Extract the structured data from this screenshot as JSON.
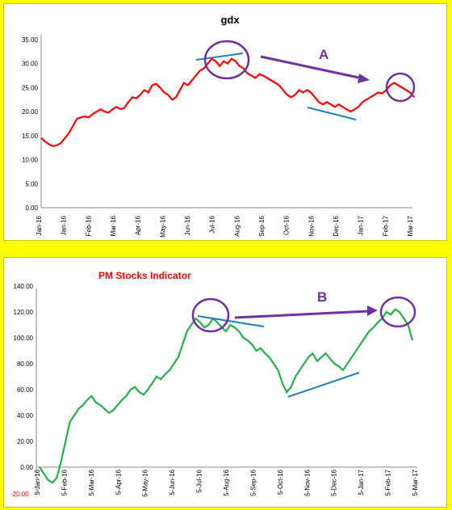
{
  "colors": {
    "background": "#ffff00",
    "gdx_line": "#ff0000",
    "pm_line": "#22b14c",
    "annotation_purple": "#7030a0",
    "trend_blue": "#1f7fc0"
  },
  "chart_data": [
    {
      "type": "line",
      "title": "gdx",
      "ylim": [
        0,
        35
      ],
      "yticks": [
        "35.00",
        "30.00",
        "25.00",
        "20.00",
        "15.00",
        "10.00",
        "5.00",
        "0.00"
      ],
      "xticks": [
        "Jan-16",
        "Jan-16",
        "Feb-16",
        "Mar-16",
        "Apr-16",
        "May-16",
        "Jun-16",
        "Jul-16",
        "Aug-16",
        "Sep-16",
        "Oct-16",
        "Nov-16",
        "Dec-16",
        "Jan-17",
        "Feb-17",
        "Mar-17"
      ],
      "legend": "none",
      "grid": false,
      "annotation_label": "A",
      "series": [
        {
          "values": [
            14.5,
            13.8,
            13.2,
            12.8,
            13.0,
            13.5,
            14.5,
            15.5,
            17.0,
            18.5,
            18.8,
            19.0,
            18.8,
            19.5,
            20.0,
            20.5,
            20.0,
            19.8,
            20.5,
            21.0,
            20.5,
            20.8,
            22.0,
            23.0,
            22.8,
            23.5,
            24.5,
            24.0,
            25.5,
            25.8,
            25.0,
            24.0,
            23.5,
            22.5,
            23.0,
            24.5,
            26.0,
            25.5,
            26.5,
            27.5,
            28.5,
            29.0,
            30.0,
            31.0,
            30.5,
            29.5,
            30.5,
            30.0,
            31.0,
            30.5,
            29.5,
            29.0,
            28.0,
            27.5,
            27.0,
            27.8,
            27.5,
            27.0,
            26.5,
            26.0,
            25.5,
            24.5,
            23.5,
            23.0,
            23.5,
            24.5,
            24.0,
            24.5,
            24.0,
            23.0,
            22.0,
            21.5,
            22.0,
            21.5,
            21.0,
            21.5,
            21.0,
            20.5,
            20.0,
            20.5,
            21.0,
            22.0,
            22.5,
            23.0,
            23.5,
            24.0,
            23.8,
            24.5,
            25.5,
            26.0,
            25.5,
            25.0,
            24.5,
            24.0,
            23.0
          ]
        }
      ]
    },
    {
      "type": "line",
      "title": "PM Stocks Indicator",
      "ylim": [
        -20,
        140
      ],
      "yticks": [
        "140.00",
        "120.00",
        "100.00",
        "80.00",
        "60.00",
        "40.00",
        "20.00",
        "0.00"
      ],
      "negative_tick": "-20.00",
      "xticks": [
        "5-Jan-16",
        "5-Feb-16",
        "5-Mar-16",
        "5-Apr-16",
        "5-May-16",
        "5-Jun-16",
        "5-Jul-16",
        "5-Aug-16",
        "5-Sep-16",
        "5-Oct-16",
        "5-Nov-16",
        "5-Dec-16",
        "5-Jan-17",
        "5-Feb-17",
        "5-Mar-17"
      ],
      "legend": "none",
      "grid": false,
      "annotation_label": "B",
      "series": [
        {
          "values": [
            0,
            -5,
            -10,
            -12,
            -8,
            5,
            20,
            35,
            40,
            45,
            48,
            52,
            55,
            50,
            48,
            45,
            42,
            44,
            48,
            52,
            55,
            60,
            62,
            58,
            56,
            60,
            65,
            70,
            68,
            72,
            75,
            80,
            85,
            95,
            105,
            110,
            115,
            112,
            108,
            110,
            115,
            112,
            108,
            105,
            110,
            108,
            105,
            100,
            98,
            95,
            90,
            92,
            88,
            85,
            80,
            75,
            65,
            58,
            62,
            70,
            75,
            80,
            85,
            88,
            82,
            85,
            88,
            84,
            80,
            78,
            75,
            80,
            85,
            90,
            95,
            100,
            105,
            108,
            112,
            115,
            120,
            118,
            122,
            120,
            115,
            110,
            98
          ]
        }
      ]
    }
  ]
}
